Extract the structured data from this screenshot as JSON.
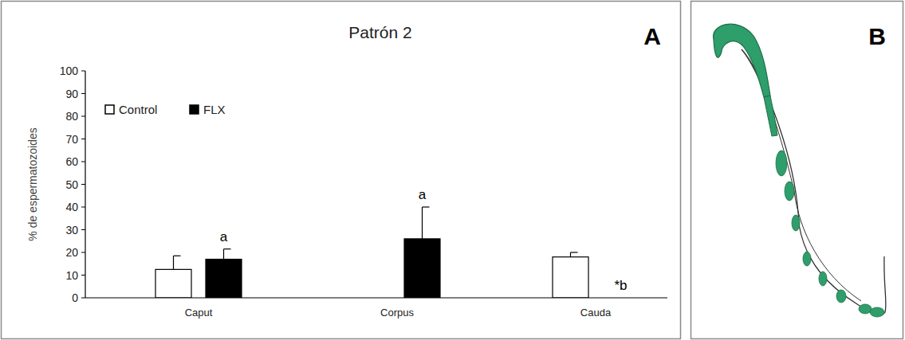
{
  "chart_data": {
    "type": "bar",
    "title": "Patrón 2",
    "y_label": "% de espermatozoides",
    "categories": [
      "Caput",
      "Corpus",
      "Cauda"
    ],
    "series": [
      {
        "name": "Control",
        "color": "#ffffff",
        "values": [
          12.5,
          0,
          18
        ],
        "errors": [
          6,
          0,
          2
        ]
      },
      {
        "name": "FLX",
        "color": "#000000",
        "values": [
          17,
          26,
          0
        ],
        "errors": [
          4.5,
          14,
          0
        ]
      }
    ],
    "annotations": [
      {
        "text": "a",
        "series": 1,
        "category": 0
      },
      {
        "text": "a",
        "series": 1,
        "category": 1
      },
      {
        "text": "*b",
        "series": 1,
        "category": 2
      }
    ],
    "ylim": [
      0,
      100
    ],
    "yticks": [
      0,
      10,
      20,
      30,
      40,
      50,
      60,
      70,
      80,
      90,
      100
    ],
    "grid": false,
    "legend": "top-left"
  },
  "panel_labels": [
    "A",
    "B"
  ]
}
